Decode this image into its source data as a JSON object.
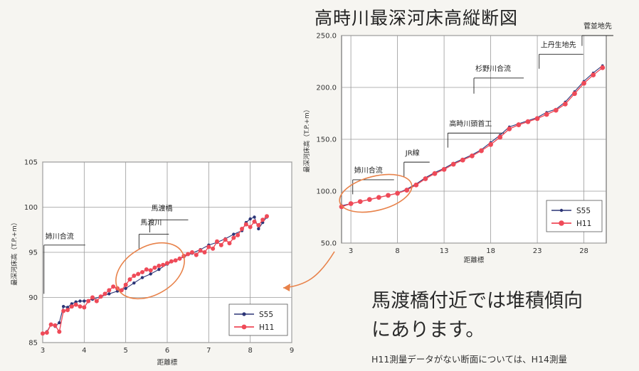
{
  "page": {
    "title": "高時川最深河床高縦断図",
    "comment_line1": "馬渡橋付近では堆積傾向",
    "comment_line2": "にあります。",
    "note": "H11測量データがない断面については、H14測量"
  },
  "colors": {
    "s55": "#2c3577",
    "h11": "#ef4a58",
    "grid": "#9a9a9a",
    "highlight": "#e8824a"
  },
  "chart_data": [
    {
      "type": "line",
      "title": "",
      "xlabel": "距離標",
      "ylabel": "最深河床高（T.P.+m）",
      "xlim": [
        3,
        9
      ],
      "ylim": [
        85,
        105
      ],
      "xticks": [
        "3",
        "4",
        "5",
        "6",
        "7",
        "8",
        "9"
      ],
      "yticks": [
        "85",
        "90",
        "95",
        "100",
        "105"
      ],
      "grid": true,
      "legend": "bottom-right",
      "series": [
        {
          "name": "S55",
          "x": [
            3.0,
            3.1,
            3.2,
            3.3,
            3.4,
            3.5,
            3.6,
            3.7,
            3.8,
            3.9,
            4.0,
            4.2,
            4.4,
            4.6,
            4.8,
            5.0,
            5.2,
            5.4,
            5.6,
            5.8,
            6.0,
            6.2,
            6.4,
            6.6,
            6.8,
            7.0,
            7.2,
            7.4,
            7.6,
            7.8,
            7.9,
            8.0,
            8.1,
            8.2,
            8.3,
            8.4
          ],
          "y": [
            86.0,
            86.2,
            87.0,
            86.8,
            87.2,
            89.0,
            88.9,
            89.3,
            89.5,
            89.6,
            89.6,
            89.8,
            90.1,
            90.4,
            90.7,
            91.0,
            91.6,
            92.2,
            92.6,
            93.1,
            93.7,
            94.1,
            94.5,
            94.9,
            95.3,
            95.8,
            96.1,
            96.5,
            97.0,
            97.4,
            98.3,
            98.7,
            98.9,
            97.6,
            98.3,
            98.9
          ]
        },
        {
          "name": "H11",
          "x": [
            3.0,
            3.1,
            3.2,
            3.3,
            3.4,
            3.5,
            3.6,
            3.7,
            3.8,
            3.9,
            4.0,
            4.1,
            4.2,
            4.3,
            4.4,
            4.5,
            4.6,
            4.7,
            4.8,
            4.9,
            5.0,
            5.1,
            5.2,
            5.3,
            5.4,
            5.5,
            5.6,
            5.7,
            5.8,
            5.9,
            6.0,
            6.1,
            6.2,
            6.3,
            6.4,
            6.5,
            6.6,
            6.7,
            6.8,
            6.9,
            7.0,
            7.1,
            7.2,
            7.3,
            7.4,
            7.5,
            7.6,
            7.7,
            7.8,
            7.9,
            8.0,
            8.1,
            8.2,
            8.3,
            8.4
          ],
          "y": [
            86.0,
            86.1,
            87.0,
            86.9,
            86.2,
            88.5,
            88.6,
            89.0,
            89.2,
            89.0,
            88.9,
            89.6,
            90.0,
            89.6,
            90.1,
            90.4,
            90.8,
            91.2,
            91.0,
            90.8,
            91.4,
            92.0,
            92.4,
            92.6,
            92.8,
            93.1,
            93.0,
            93.3,
            93.5,
            93.6,
            93.8,
            94.0,
            94.1,
            94.3,
            94.6,
            94.8,
            95.0,
            94.7,
            95.2,
            95.0,
            95.6,
            95.4,
            96.2,
            95.8,
            96.4,
            96.0,
            96.6,
            96.9,
            97.6,
            98.1,
            97.8,
            98.4,
            98.0,
            98.6,
            99.0
          ]
        }
      ],
      "annotations": [
        "姉川合流",
        "馬渡川",
        "馬渡橋"
      ]
    },
    {
      "type": "line",
      "title": "",
      "xlabel": "距離標",
      "ylabel": "最深河床高（T.P.+m）",
      "xlim": [
        2,
        30.4
      ],
      "ylim": [
        50,
        250
      ],
      "xticks": [
        "3",
        "8",
        "13",
        "18",
        "23",
        "28"
      ],
      "yticks": [
        "50.0",
        "100.0",
        "150.0",
        "200.0",
        "250.0"
      ],
      "grid": true,
      "legend": "bottom-right",
      "series": [
        {
          "name": "S55",
          "x": [
            2.0,
            3.0,
            4.0,
            5.0,
            6.0,
            7.0,
            8.0,
            9.0,
            10.0,
            11.0,
            12.0,
            13.0,
            14.0,
            15.0,
            16.0,
            17.0,
            18.0,
            19.0,
            20.0,
            21.0,
            22.0,
            23.0,
            24.0,
            25.0,
            26.0,
            27.0,
            28.0,
            29.0,
            30.0
          ],
          "y": [
            86,
            88,
            90,
            92,
            94,
            96,
            98,
            102,
            107,
            113,
            118,
            122,
            127,
            131,
            135,
            140,
            147,
            154,
            162,
            165,
            168,
            171,
            176,
            179,
            186,
            196,
            206,
            214,
            221
          ]
        },
        {
          "name": "H11",
          "x": [
            2.0,
            3.0,
            4.0,
            5.0,
            6.0,
            7.0,
            8.0,
            9.0,
            10.0,
            11.0,
            12.0,
            13.0,
            14.0,
            15.0,
            16.0,
            17.0,
            18.0,
            19.0,
            20.0,
            21.0,
            22.0,
            23.0,
            24.0,
            25.0,
            26.0,
            27.0,
            28.0,
            29.0,
            30.0
          ],
          "y": [
            85,
            88,
            90,
            92,
            94,
            96,
            98,
            101,
            106,
            112,
            117,
            121,
            126,
            130,
            134,
            139,
            145,
            152,
            160,
            164,
            167,
            170,
            174,
            178,
            184,
            194,
            204,
            212,
            219
          ]
        }
      ],
      "annotations": [
        "姉川合流",
        "JR線",
        "高時川頭首工",
        "杉野川合流",
        "上丹生地先",
        "菅並地先"
      ]
    }
  ]
}
